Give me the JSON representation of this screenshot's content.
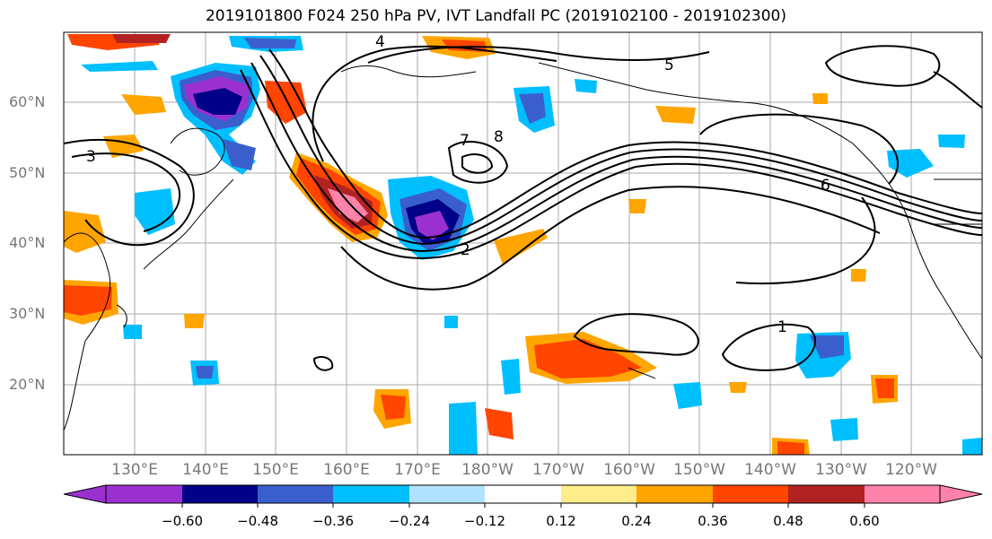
{
  "title": "2019101800 F024 250 hPa PV, IVT Landfall PC (2019102100 - 2019102300)",
  "lat_labels": [
    "60°N",
    "50°N",
    "40°N",
    "30°N",
    "20°N"
  ],
  "lon_labels": [
    "130°E",
    "140°E",
    "150°E",
    "160°E",
    "170°E",
    "180°W",
    "170°W",
    "160°W",
    "150°W",
    "140°W",
    "130°W",
    "120°W"
  ],
  "contour_labels": [
    "1",
    "2",
    "3",
    "4",
    "5",
    "6",
    "7",
    "8"
  ],
  "colorbar": {
    "tick_labels": [
      "−0.60",
      "−0.48",
      "−0.36",
      "−0.24",
      "−0.12",
      "0.12",
      "0.24",
      "0.36",
      "0.48",
      "0.60"
    ],
    "colors": [
      "#9b30d0",
      "#000088",
      "#3a5fcd",
      "#00bfff",
      "#b0e2ff",
      "#ffffff",
      "#ffec8b",
      "#ffa500",
      "#ff4500",
      "#b22222",
      "#ff82ab"
    ]
  }
}
